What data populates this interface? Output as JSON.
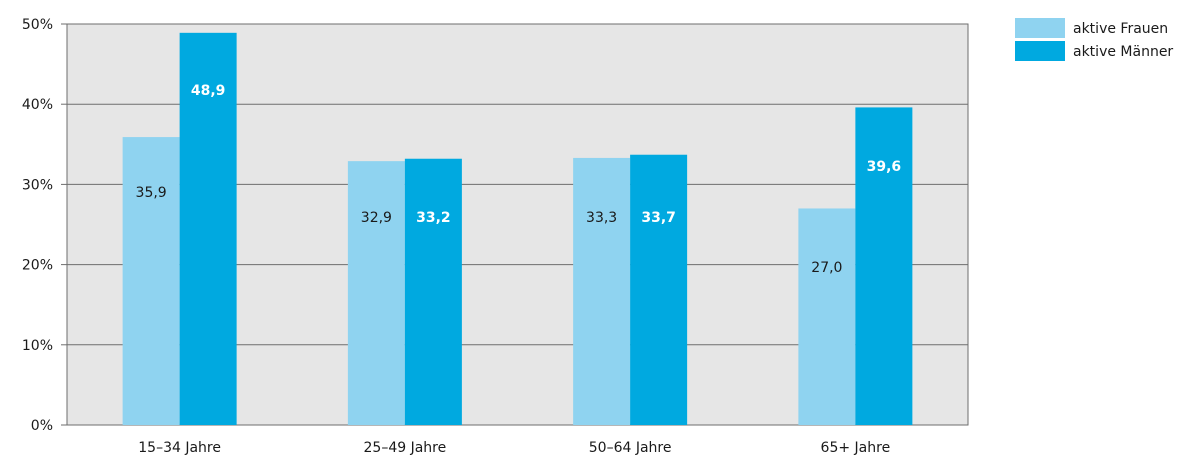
{
  "chart_data": {
    "type": "bar",
    "categories": [
      "15–34 Jahre",
      "25–49 Jahre",
      "50–64 Jahre",
      "65+ Jahre"
    ],
    "series": [
      {
        "name": "aktive Frauen",
        "values": [
          35.9,
          32.9,
          33.3,
          27.0
        ],
        "labels": [
          "35,9",
          "32,9",
          "33,3",
          "27,0"
        ],
        "color": "#8fd3f0",
        "label_color": "#1a1a1a"
      },
      {
        "name": "aktive Männer",
        "values": [
          48.9,
          33.2,
          33.7,
          39.6
        ],
        "labels": [
          "48,9",
          "33,2",
          "33,7",
          "39,6"
        ],
        "color": "#00a9e0",
        "label_color": "#ffffff"
      }
    ],
    "ylim": [
      0,
      50
    ],
    "yticks": [
      0,
      10,
      20,
      30,
      40,
      50
    ],
    "ytick_labels": [
      "0%",
      "10%",
      "20%",
      "30%",
      "40%",
      "50%"
    ],
    "grid": true,
    "legend_position": "top-right",
    "plot_background": "#e6e6e6",
    "gridline_color": "#6e6e6e"
  }
}
